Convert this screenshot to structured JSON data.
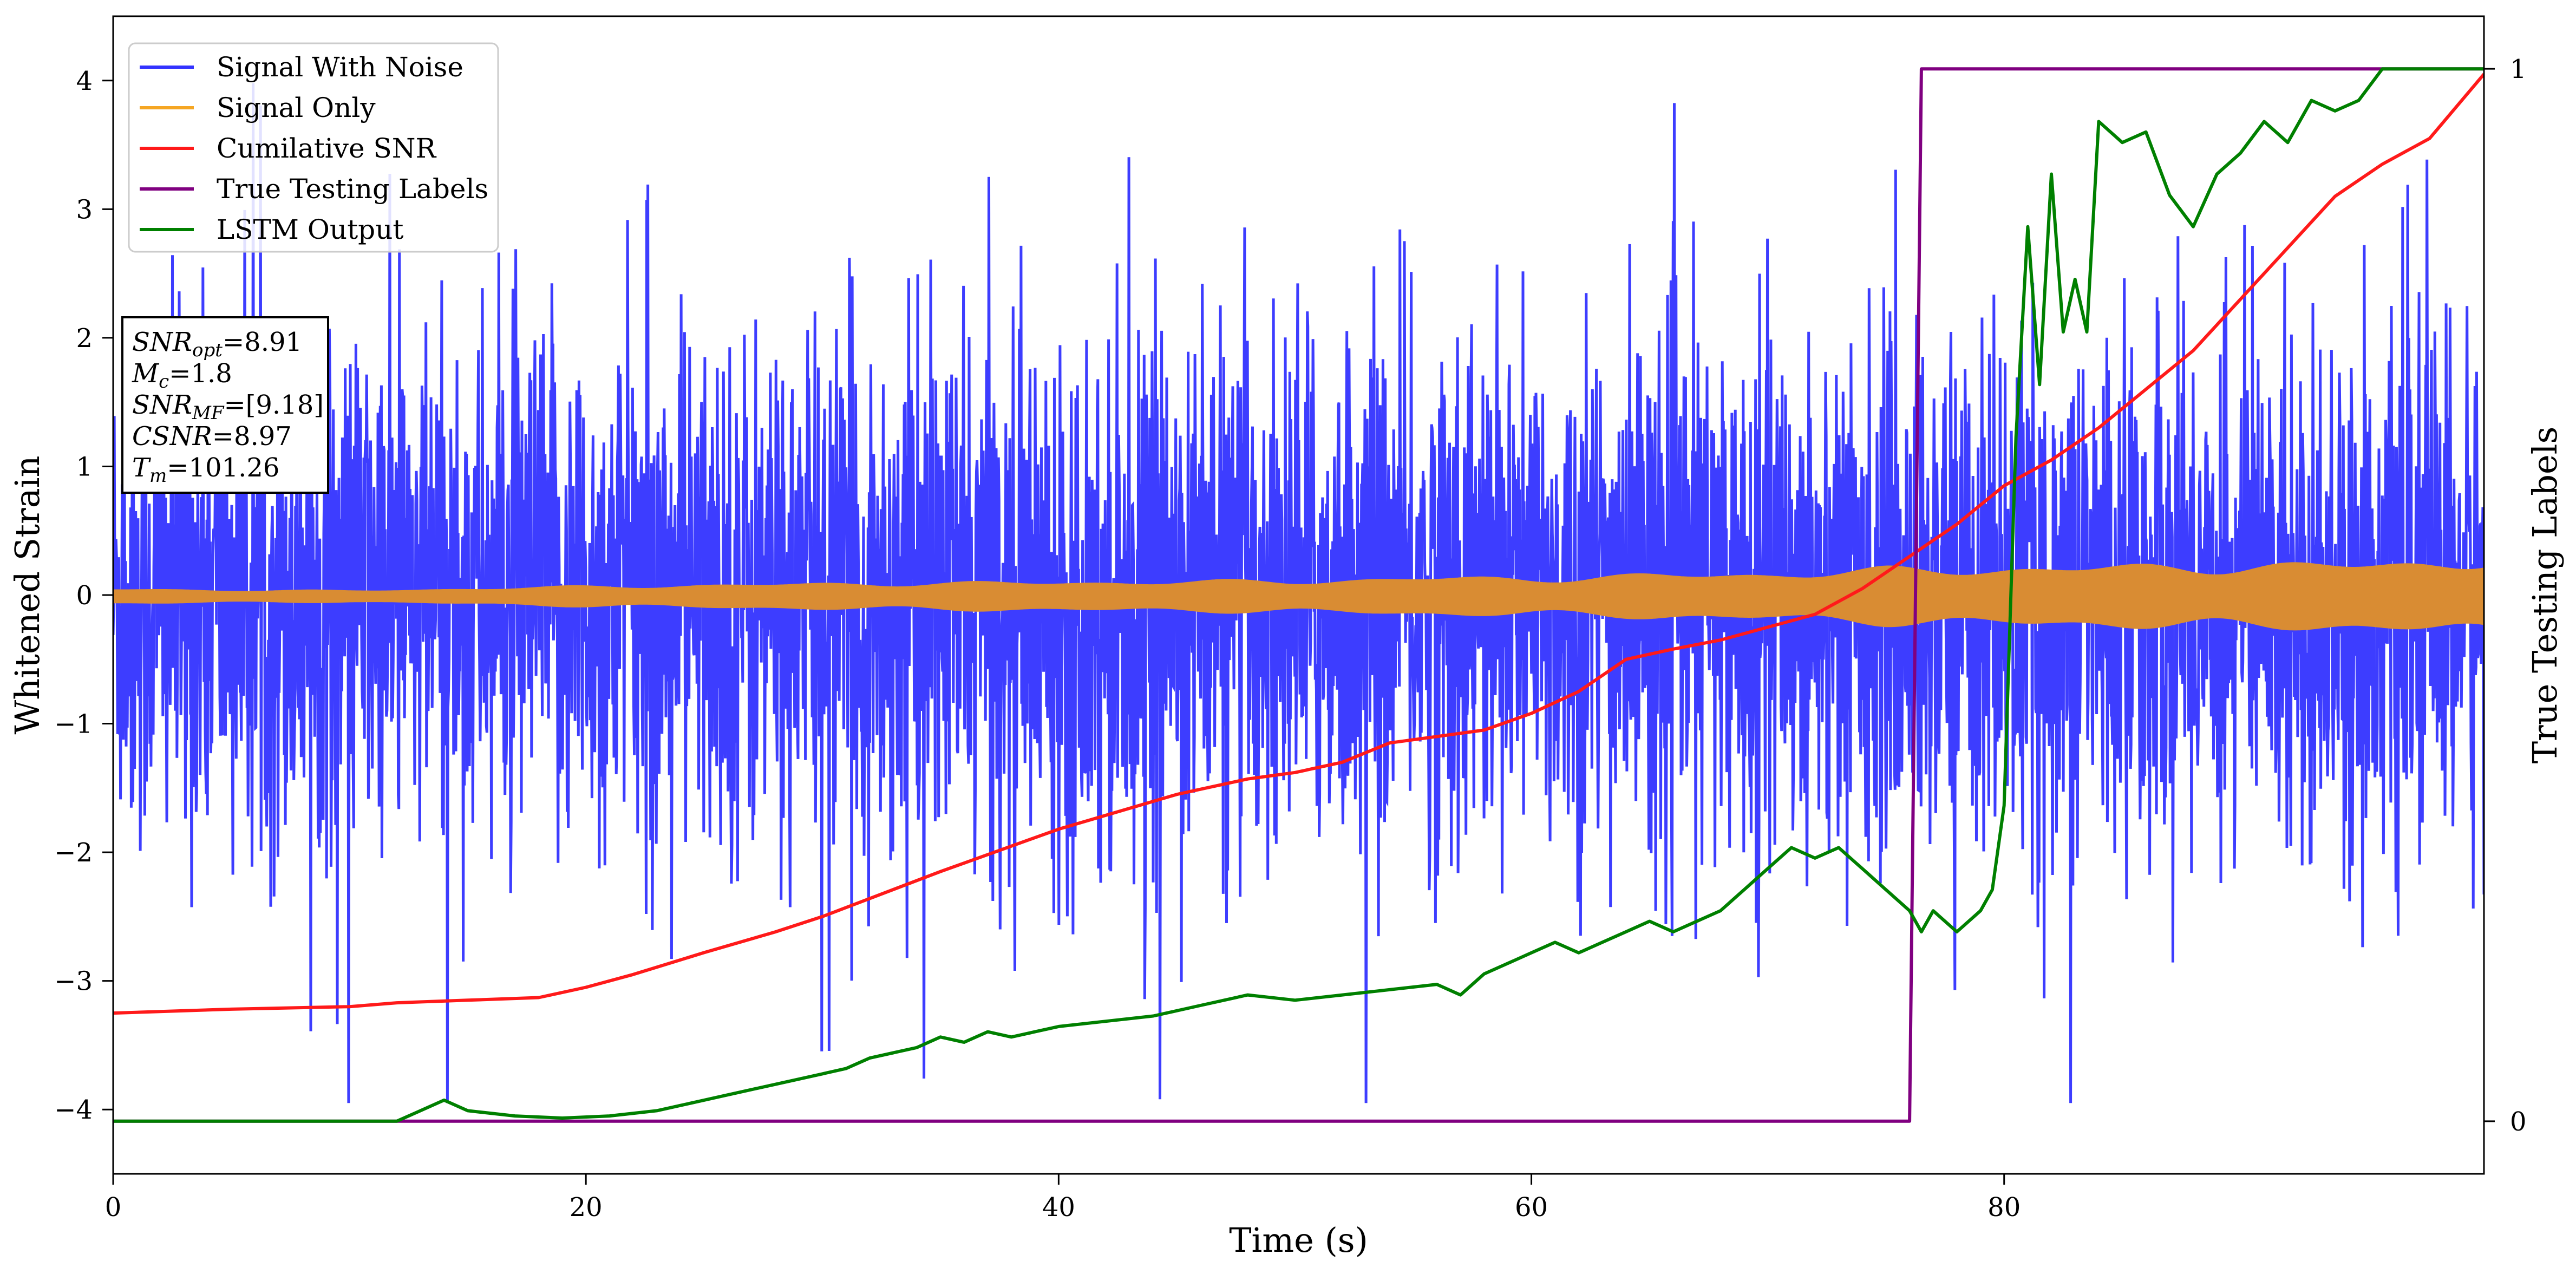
{
  "chart_data": {
    "type": "line",
    "xlabel": "Time (s)",
    "ylabel_left": "Whitened Strain",
    "ylabel_right": "True Testing Labels",
    "xlim": [
      0,
      100.3
    ],
    "ylim_left": [
      -4.5,
      4.5
    ],
    "ylim_right": [
      -0.05,
      1.05
    ],
    "x_ticks": [
      0,
      20,
      40,
      60,
      80
    ],
    "y_ticks_left": [
      -4,
      -3,
      -2,
      -1,
      0,
      1,
      2,
      3,
      4
    ],
    "y_ticks_right": [
      0,
      1
    ],
    "grid": false,
    "legend_position": "top-left",
    "series": [
      {
        "name": "Signal With Noise",
        "axis": "left",
        "color": "#3333ff",
        "description_values": {
          "approx_range": [
            -3.9,
            4.1
          ],
          "typical_amplitude": 1.0
        }
      },
      {
        "name": "Signal Only",
        "axis": "left",
        "color": "#f5a623",
        "envelope_x": [
          0,
          10,
          20,
          30,
          40,
          50,
          55,
          60,
          65,
          70,
          75,
          80,
          85,
          90,
          95,
          100.3
        ],
        "envelope": [
          0.04,
          0.03,
          0.06,
          0.08,
          0.09,
          0.1,
          0.12,
          0.12,
          0.14,
          0.15,
          0.18,
          0.19,
          0.2,
          0.21,
          0.22,
          0.25
        ]
      },
      {
        "name": "Cumilative SNR",
        "axis": "left",
        "color": "#ff1a1a",
        "x": [
          0,
          5,
          10,
          12,
          15,
          18,
          20,
          22,
          25,
          28,
          30,
          35,
          40,
          45,
          48,
          50,
          52,
          54,
          56,
          58,
          60,
          62,
          64,
          66,
          68,
          70,
          72,
          74,
          76,
          78,
          80,
          82,
          84,
          86,
          88,
          90,
          92,
          94,
          96,
          98,
          100.3
        ],
        "y": [
          -3.25,
          -3.22,
          -3.2,
          -3.17,
          -3.15,
          -3.13,
          -3.05,
          -2.95,
          -2.78,
          -2.62,
          -2.5,
          -2.15,
          -1.82,
          -1.55,
          -1.43,
          -1.38,
          -1.3,
          -1.15,
          -1.1,
          -1.05,
          -0.92,
          -0.75,
          -0.5,
          -0.42,
          -0.35,
          -0.25,
          -0.15,
          0.05,
          0.3,
          0.55,
          0.85,
          1.05,
          1.3,
          1.6,
          1.9,
          2.3,
          2.7,
          3.1,
          3.35,
          3.55,
          4.05
        ]
      },
      {
        "name": "True Testing Labels",
        "axis": "right",
        "color": "#800080",
        "x": [
          0,
          76.0,
          76.5,
          100.3
        ],
        "y": [
          0,
          0,
          1,
          1
        ]
      },
      {
        "name": "LSTM Output",
        "axis": "right",
        "color": "#008000",
        "x": [
          0,
          8,
          12,
          13,
          14,
          15,
          17,
          19,
          21,
          23,
          24,
          26,
          28,
          30,
          31,
          32,
          34,
          35,
          36,
          37,
          38,
          39,
          40,
          42,
          44,
          46,
          48,
          50,
          52,
          54,
          56,
          57,
          58,
          59,
          60,
          61,
          62,
          63,
          64,
          65,
          66,
          67,
          68,
          69,
          70,
          71,
          72,
          73,
          74,
          75,
          76,
          76.5,
          77,
          78,
          79,
          79.5,
          80,
          80.5,
          81,
          81.5,
          82,
          82.5,
          83,
          83.5,
          84,
          85,
          86,
          87,
          88,
          89,
          90,
          91,
          92,
          93,
          94,
          95,
          96,
          97,
          98,
          99,
          100.3
        ],
        "y": [
          0,
          0,
          0,
          0.01,
          0.02,
          0.01,
          0.005,
          0.003,
          0.005,
          0.01,
          0.015,
          0.025,
          0.035,
          0.045,
          0.05,
          0.06,
          0.07,
          0.08,
          0.075,
          0.085,
          0.08,
          0.085,
          0.09,
          0.095,
          0.1,
          0.11,
          0.12,
          0.115,
          0.12,
          0.125,
          0.13,
          0.12,
          0.14,
          0.15,
          0.16,
          0.17,
          0.16,
          0.17,
          0.18,
          0.19,
          0.18,
          0.19,
          0.2,
          0.22,
          0.24,
          0.26,
          0.25,
          0.26,
          0.24,
          0.22,
          0.2,
          0.18,
          0.2,
          0.18,
          0.2,
          0.22,
          0.3,
          0.65,
          0.85,
          0.7,
          0.9,
          0.75,
          0.8,
          0.75,
          0.95,
          0.93,
          0.94,
          0.88,
          0.85,
          0.9,
          0.92,
          0.95,
          0.93,
          0.97,
          0.96,
          0.97,
          1.0,
          1.0,
          1.0,
          1.0,
          1.0
        ]
      }
    ],
    "annotation_lines": [
      {
        "label_main": "SNR",
        "label_sub": "opt",
        "value": "=8.91"
      },
      {
        "label_main": "M",
        "label_sub": "c",
        "value": "=1.8"
      },
      {
        "label_main": "SNR",
        "label_sub": "MF",
        "value": "=[9.18]"
      },
      {
        "label_main": "CSNR",
        "label_sub": "",
        "value": "=8.97"
      },
      {
        "label_main": "T",
        "label_sub": "m",
        "value": "=101.26"
      }
    ]
  }
}
